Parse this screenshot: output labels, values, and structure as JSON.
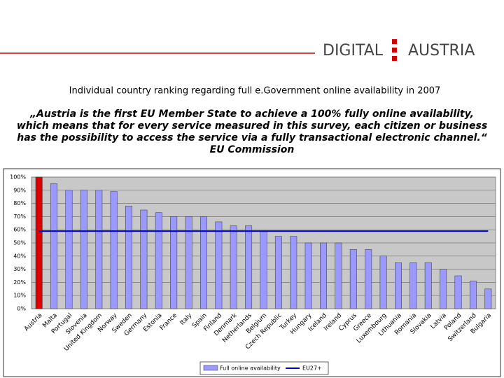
{
  "header": {
    "logo_left": "DIGITAL",
    "logo_right": "AUSTRIA"
  },
  "chart_data": {
    "type": "bar",
    "title": "Individual country ranking regarding full e.Government online availability in 2007",
    "quote": [
      "„Austria is the first EU Member State to achieve a 100% fully online availability,",
      "which means that for every service measured in this survey, each citizen or business",
      "has the possibility to access the service via a fully transactional electronic channel.“",
      "EU Commission"
    ],
    "categories": [
      "Austria",
      "Malta",
      "Portugal",
      "Slovenia",
      "United Kingdom",
      "Norway",
      "Sweden",
      "Germany",
      "Estonia",
      "France",
      "Italy",
      "Spain",
      "Finland",
      "Denmark",
      "Netherlands",
      "Belgium",
      "Czech Republic",
      "Turkey",
      "Hungary",
      "Iceland",
      "Ireland",
      "Cyprus",
      "Greece",
      "Luxembourg",
      "Lithuania",
      "Romania",
      "Slovakia",
      "Latvia",
      "Poland",
      "Switzerland",
      "Bulgaria"
    ],
    "series": [
      {
        "name": "Full online availability",
        "color": "#9999ff",
        "values": [
          100,
          95,
          90,
          90,
          90,
          89,
          78,
          75,
          73,
          70,
          70,
          70,
          66,
          63,
          63,
          59,
          55,
          55,
          50,
          50,
          50,
          45,
          45,
          40,
          35,
          35,
          35,
          30,
          25,
          21,
          15
        ],
        "colors": [
          "#dd0000",
          "#9999ff",
          "#9999ff",
          "#9999ff",
          "#9999ff",
          "#9999ff",
          "#9999ff",
          "#9999ff",
          "#9999ff",
          "#9999ff",
          "#9999ff",
          "#9999ff",
          "#9999ff",
          "#9999ff",
          "#9999ff",
          "#9999ff",
          "#9999ff",
          "#9999ff",
          "#9999ff",
          "#9999ff",
          "#9999ff",
          "#9999ff",
          "#9999ff",
          "#9999ff",
          "#9999ff",
          "#9999ff",
          "#9999ff",
          "#9999ff",
          "#9999ff",
          "#9999ff",
          "#9999ff"
        ]
      }
    ],
    "reference_line": {
      "name": "EU27+",
      "value": 59,
      "color": "#0000cc"
    },
    "ylim": [
      0,
      100
    ],
    "yticks": [
      {
        "value": 0,
        "label": "0%"
      },
      {
        "value": 10,
        "label": "10%"
      },
      {
        "value": 20,
        "label": "20%"
      },
      {
        "value": 30,
        "label": "30%"
      },
      {
        "value": 40,
        "label": "40%"
      },
      {
        "value": 50,
        "label": "50%"
      },
      {
        "value": 60,
        "label": "60%"
      },
      {
        "value": 70,
        "label": "70%"
      },
      {
        "value": 80,
        "label": "80%"
      },
      {
        "value": 90,
        "label": "90%"
      },
      {
        "value": 100,
        "label": "100%"
      }
    ],
    "grid": true
  }
}
